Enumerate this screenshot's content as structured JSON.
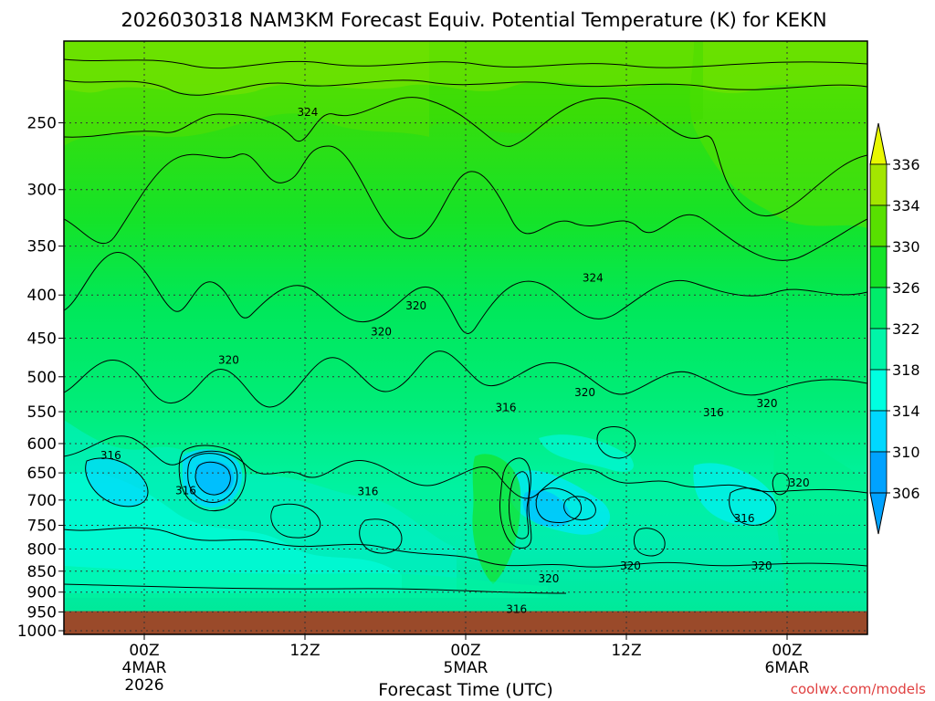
{
  "chart_data": {
    "type": "heatmap",
    "title": "2026030318 NAM3KM Forecast Equiv. Potential Temperature (K) for KEKN",
    "xlabel": "Forecast Time (UTC)",
    "ylabel": "",
    "x_ticks": [
      {
        "t": 6,
        "lines": [
          "00Z",
          "4MAR",
          "2026"
        ]
      },
      {
        "t": 18,
        "lines": [
          "12Z"
        ]
      },
      {
        "t": 30,
        "lines": [
          "00Z",
          "5MAR"
        ]
      },
      {
        "t": 42,
        "lines": [
          "12Z"
        ]
      },
      {
        "t": 54,
        "lines": [
          "00Z",
          "6MAR"
        ]
      }
    ],
    "x_range_hours": [
      0,
      60
    ],
    "y_ticks": [
      250,
      300,
      350,
      400,
      450,
      500,
      550,
      600,
      650,
      700,
      750,
      800,
      850,
      900,
      950,
      1000
    ],
    "y_range_hPa": [
      200,
      1010
    ],
    "surface_pressure_hPa": 948,
    "grid": true,
    "colorbar": {
      "levels": [
        306,
        310,
        314,
        318,
        322,
        326,
        330,
        334,
        336
      ],
      "labels": [
        "306",
        "310",
        "314",
        "318",
        "322",
        "326",
        "330",
        "334",
        "336"
      ],
      "colors": [
        "#00a2ff",
        "#00d8ff",
        "#00ffe0",
        "#00f5a8",
        "#00ed6a",
        "#15e328",
        "#58e000",
        "#a3e600",
        "#e8f800"
      ]
    },
    "contour_labels": [
      {
        "text": "324",
        "t": 18.2,
        "p": 243
      },
      {
        "text": "324",
        "t": 39.5,
        "p": 382
      },
      {
        "text": "320",
        "t": 26.3,
        "p": 412
      },
      {
        "text": "320",
        "t": 23.7,
        "p": 442
      },
      {
        "text": "320",
        "t": 12.3,
        "p": 478
      },
      {
        "text": "320",
        "t": 38.9,
        "p": 522
      },
      {
        "text": "320",
        "t": 52.5,
        "p": 538
      },
      {
        "text": "316",
        "t": 33.0,
        "p": 544
      },
      {
        "text": "316",
        "t": 48.5,
        "p": 551
      },
      {
        "text": "316",
        "t": 3.5,
        "p": 620
      },
      {
        "text": "316",
        "t": 9.1,
        "p": 682
      },
      {
        "text": "316",
        "t": 22.7,
        "p": 684
      },
      {
        "text": "320",
        "t": 54.9,
        "p": 668
      },
      {
        "text": "316",
        "t": 50.8,
        "p": 736
      },
      {
        "text": "320",
        "t": 42.3,
        "p": 838
      },
      {
        "text": "320",
        "t": 52.1,
        "p": 838
      },
      {
        "text": "320",
        "t": 36.2,
        "p": 868
      },
      {
        "text": "316",
        "t": 33.8,
        "p": 943
      }
    ]
  },
  "credit": "coolwx.com/models"
}
